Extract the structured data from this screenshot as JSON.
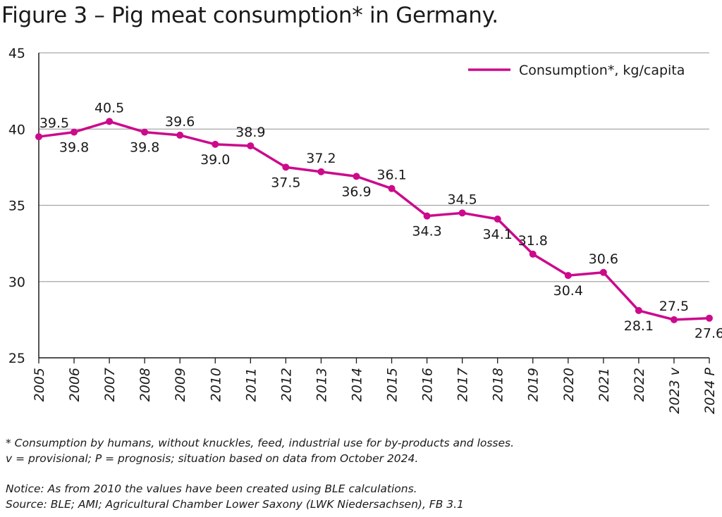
{
  "header": {
    "title": "Figure 3 – Pig meat consumption* in Germany."
  },
  "footnotes": {
    "line1": "* Consumption by humans, without knuckles, feed, industrial use for by-products and losses.",
    "line2": "v = provisional; P = prognosis; situation based on data from October 2024.",
    "notice": "Notice: As from 2010 the values have been created using BLE calculations.",
    "source": "Source: BLE; AMI; Agricultural Chamber Lower Saxony (LWK Niedersachsen), FB 3.1"
  },
  "chart_data": {
    "type": "line",
    "title": "Figure 3 – Pig meat consumption* in Germany.",
    "xlabel": "",
    "ylabel": "",
    "categories": [
      "2005",
      "2006",
      "2007",
      "2008",
      "2009",
      "2010",
      "2011",
      "2012",
      "2013",
      "2014",
      "2015",
      "2016",
      "2017",
      "2018",
      "2019",
      "2020",
      "2021",
      "2022",
      "2023 v",
      "2024 P"
    ],
    "series": [
      {
        "name": "Consumption*, kg/capita",
        "values": [
          39.5,
          39.8,
          40.5,
          39.8,
          39.6,
          39.0,
          38.9,
          37.5,
          37.2,
          36.9,
          36.1,
          34.3,
          34.5,
          34.1,
          31.8,
          30.4,
          30.6,
          28.1,
          27.5,
          27.6
        ],
        "value_labels": [
          "39.5",
          "39.8",
          "40.5",
          "39.8",
          "39.6",
          "39.0",
          "38.9",
          "37.5",
          "37.2",
          "36.9",
          "36.1",
          "34.3",
          "34.5",
          "34.1",
          "31.8",
          "30.4",
          "30.6",
          "28.1",
          "27.5",
          "27.6"
        ],
        "label_side": [
          "above",
          "below",
          "above",
          "below",
          "above",
          "below",
          "above",
          "below",
          "above",
          "below",
          "above",
          "below",
          "above",
          "below",
          "above",
          "below",
          "above",
          "below",
          "above",
          "below"
        ],
        "color": "#cc0a8c"
      }
    ],
    "yticks": [
      25,
      30,
      35,
      40,
      45
    ],
    "ylim": [
      25,
      45
    ],
    "grid": true,
    "legend": "top-right"
  }
}
